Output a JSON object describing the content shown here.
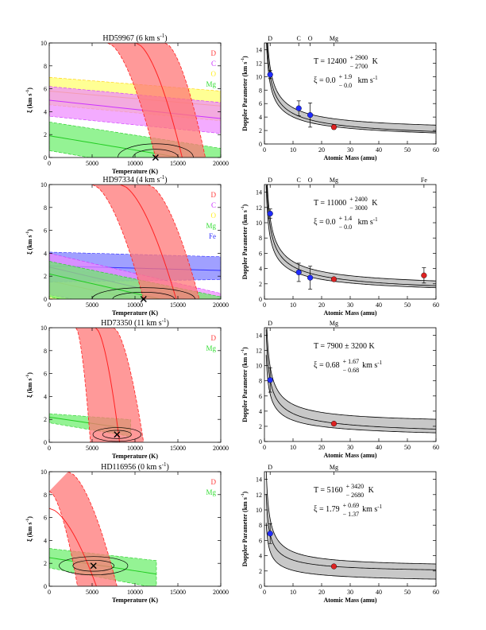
{
  "chart_data": [
    {
      "type": "contour",
      "title": "HD59967 (6 km s",
      "title_sup": "-1",
      "title_tail": ")",
      "xlabel": "Temperature (K)",
      "ylabel": "ξ (km s",
      "ylabel_sup": "-1",
      "ylabel_tail": ")",
      "xlim": [
        0,
        20000
      ],
      "ylim": [
        0,
        10
      ],
      "xticks": [
        "0",
        "5000",
        "10000",
        "15000",
        "20000"
      ],
      "yticks": [
        "0",
        "2",
        "4",
        "6",
        "8",
        "10"
      ],
      "legend": [
        {
          "label": "D",
          "color": "#ff3b3b"
        },
        {
          "label": "C",
          "color": "#cc33ff"
        },
        {
          "label": "O",
          "color": "#ffee22"
        },
        {
          "label": "Mg",
          "color": "#33dd33"
        }
      ],
      "best_fit": {
        "T": 12400,
        "xi": 0.0
      },
      "bands": [
        {
          "element": "O",
          "color": "#ffff66",
          "line": "#ffcc00",
          "y0": [
            4.6,
            3.2
          ],
          "y1": [
            7.0,
            5.8
          ],
          "ymid": [
            5.8,
            4.5
          ]
        },
        {
          "element": "C",
          "color": "#ee88ff",
          "line": "#cc33ff",
          "y0": [
            3.6,
            2.1
          ],
          "y1": [
            6.2,
            4.8
          ],
          "ymid": [
            5.0,
            3.4
          ]
        },
        {
          "element": "Mg",
          "color": "#66ee66",
          "line": "#22cc22",
          "y0": [
            0.6,
            -2.0
          ],
          "y1": [
            3.1,
            0.8
          ],
          "ymid": [
            1.9,
            -0.6
          ]
        },
        {
          "element": "D",
          "color": "#ff7777",
          "line": "#ff2222",
          "arcs": [
            [
              6800,
              10.0,
              12400,
              0.0
            ],
            [
              10100,
              10.0,
              15500,
              0.0
            ],
            [
              13500,
              10.0,
              18200,
              0.0
            ]
          ]
        }
      ]
    },
    {
      "type": "line",
      "xlabel": "Atomic Mass (amu)",
      "ylabel": "Doppler Parameter (km s",
      "ylabel_sup": "-1",
      "ylabel_tail": ")",
      "xlim": [
        0,
        60
      ],
      "ylim": [
        0,
        15
      ],
      "xticks": [
        "0",
        "10",
        "20",
        "30",
        "40",
        "50",
        "60"
      ],
      "yticks": [
        "0",
        "2",
        "4",
        "6",
        "8",
        "10",
        "12",
        "14"
      ],
      "top_labels": [
        {
          "label": "D",
          "mass": 2
        },
        {
          "label": "C",
          "mass": 12
        },
        {
          "label": "O",
          "mass": 16
        },
        {
          "label": "Mg",
          "mass": 24.3
        }
      ],
      "T_text": "T = 12400",
      "T_sup": "+ 2900",
      "T_sub": "− 2700",
      "T_unit": "K",
      "xi_text": "ξ = 0.0",
      "xi_sup": "+ 1.9",
      "xi_sub": "− 0.0",
      "xi_unit": "km s",
      "T": 12400,
      "T_lo": 9700,
      "T_hi": 15300,
      "xi": 0.0,
      "xi_lo": 0.0,
      "xi_hi": 1.9,
      "points": [
        {
          "element": "D",
          "mass": 2.0,
          "b": 10.3,
          "err": 0.6,
          "color": "#1f2bff"
        },
        {
          "element": "C",
          "mass": 12.0,
          "b": 5.3,
          "err": 1.1,
          "color": "#1f2bff"
        },
        {
          "element": "O",
          "mass": 16.0,
          "b": 4.3,
          "err": 1.8,
          "color": "#1f2bff"
        },
        {
          "element": "Mg",
          "mass": 24.3,
          "b": 2.5,
          "err": 0.3,
          "color": "#dd2222"
        }
      ]
    },
    {
      "type": "contour",
      "title": "HD97334 (4 km s",
      "title_sup": "-1",
      "title_tail": ")",
      "xlabel": "Temperature (K)",
      "ylabel": "ξ (km s",
      "ylabel_sup": "-1",
      "ylabel_tail": ")",
      "xlim": [
        0,
        20000
      ],
      "ylim": [
        0,
        10
      ],
      "xticks": [
        "0",
        "5000",
        "10000",
        "15000",
        "20000"
      ],
      "yticks": [
        "0",
        "2",
        "4",
        "6",
        "8",
        "10"
      ],
      "legend": [
        {
          "label": "D",
          "color": "#ff3b3b"
        },
        {
          "label": "C",
          "color": "#cc33ff"
        },
        {
          "label": "O",
          "color": "#ffee22"
        },
        {
          "label": "Mg",
          "color": "#33dd33"
        },
        {
          "label": "Fe",
          "color": "#3333ff"
        }
      ],
      "best_fit": {
        "T": 11000,
        "xi": 0.0
      },
      "bands": [
        {
          "element": "O",
          "color": "#ffff66",
          "line": "#ffcc00",
          "y0": [
            0.0,
            -4.0
          ],
          "y1": [
            3.0,
            0.0
          ],
          "ymid": [
            1.6,
            -1.6
          ]
        },
        {
          "element": "Fe",
          "color": "#7777ff",
          "line": "#3333ff",
          "y0": [
            1.5,
            1.7
          ],
          "y1": [
            4.1,
            3.7
          ],
          "ymid": [
            2.9,
            2.5
          ]
        },
        {
          "element": "C",
          "color": "#ee88ff",
          "line": "#cc33ff",
          "y0": [
            0.4,
            -2.6
          ],
          "y1": [
            4.0,
            0.5
          ],
          "ymid": [
            2.8,
            -0.7
          ]
        },
        {
          "element": "Mg",
          "color": "#66ee66",
          "line": "#22cc22",
          "y0": [
            0.2,
            -3.0
          ],
          "y1": [
            3.3,
            0.2
          ],
          "ymid": [
            2.2,
            -1.2
          ]
        },
        {
          "element": "D",
          "color": "#ff7777",
          "line": "#ff2222",
          "arcs": [
            [
              5000,
              10.0,
              11000,
              0.0
            ],
            [
              8300,
              10.0,
              14800,
              0.0
            ],
            [
              11500,
              10.0,
              17500,
              0.0
            ]
          ]
        }
      ]
    },
    {
      "type": "line",
      "xlabel": "Atomic Mass (amu)",
      "ylabel": "Doppler Parameter (km s",
      "ylabel_sup": "-1",
      "ylabel_tail": ")",
      "xlim": [
        0,
        60
      ],
      "ylim": [
        0,
        15
      ],
      "xticks": [
        "0",
        "10",
        "20",
        "30",
        "40",
        "50",
        "60"
      ],
      "yticks": [
        "0",
        "2",
        "4",
        "6",
        "8",
        "10",
        "12",
        "14"
      ],
      "top_labels": [
        {
          "label": "D",
          "mass": 2
        },
        {
          "label": "C",
          "mass": 12
        },
        {
          "label": "O",
          "mass": 16
        },
        {
          "label": "Mg",
          "mass": 24.3
        },
        {
          "label": "Fe",
          "mass": 55.8
        }
      ],
      "T_text": "T = 11000",
      "T_sup": "+ 2400",
      "T_sub": "− 3000",
      "T_unit": "K",
      "xi_text": "ξ = 0.0",
      "xi_sup": "+ 1.4",
      "xi_sub": "− 0.0",
      "xi_unit": "km s",
      "T": 11000,
      "T_lo": 8000,
      "T_hi": 13400,
      "xi": 0.0,
      "xi_lo": 0.0,
      "xi_hi": 1.4,
      "points": [
        {
          "element": "D",
          "mass": 2.0,
          "b": 11.2,
          "err": 0.6,
          "color": "#1f2bff"
        },
        {
          "element": "C",
          "mass": 12.0,
          "b": 3.5,
          "err": 1.2,
          "color": "#1f2bff"
        },
        {
          "element": "O",
          "mass": 16.0,
          "b": 2.8,
          "err": 1.5,
          "color": "#1f2bff"
        },
        {
          "element": "Mg",
          "mass": 24.3,
          "b": 2.6,
          "err": 0.2,
          "color": "#dd2222"
        },
        {
          "element": "Fe",
          "mass": 55.8,
          "b": 3.1,
          "err": 1.0,
          "color": "#dd2222"
        }
      ]
    },
    {
      "type": "contour",
      "title": "HD73350 (11 km s",
      "title_sup": "-1",
      "title_tail": ")",
      "xlabel": "Temperature (K)",
      "ylabel": "ξ (km s",
      "ylabel_sup": "-1",
      "ylabel_tail": ")",
      "xlim": [
        0,
        20000
      ],
      "ylim": [
        0,
        10
      ],
      "xticks": [
        "0",
        "5000",
        "10000",
        "15000",
        "20000"
      ],
      "yticks": [
        "0",
        "2",
        "4",
        "6",
        "8",
        "10"
      ],
      "legend": [
        {
          "label": "D",
          "color": "#ff3b3b"
        },
        {
          "label": "Mg",
          "color": "#33dd33"
        }
      ],
      "best_fit": {
        "T": 7900,
        "xi": 0.68
      },
      "bands": [
        {
          "element": "Mg",
          "color": "#66ee66",
          "line": "#22cc22",
          "y0": [
            1.7,
            -0.8
          ],
          "y1": [
            2.5,
            1.4
          ],
          "ymid": [
            2.2,
            0.0
          ],
          "xmax": 9500
        },
        {
          "element": "D",
          "color": "#ff7777",
          "line": "#ff2222",
          "arcs": [
            [
              3100,
              10.0,
              4800,
              0.0
            ],
            [
              5400,
              10.0,
              8200,
              0.0
            ],
            [
              7500,
              10.0,
              11000,
              0.0
            ]
          ]
        }
      ]
    },
    {
      "type": "line",
      "xlabel": "Atomic Mass (amu)",
      "ylabel": "Doppler Parameter (km s",
      "ylabel_sup": "-1",
      "ylabel_tail": ")",
      "xlim": [
        0,
        60
      ],
      "ylim": [
        0,
        15
      ],
      "xticks": [
        "0",
        "10",
        "20",
        "30",
        "40",
        "50",
        "60"
      ],
      "yticks": [
        "0",
        "2",
        "4",
        "6",
        "8",
        "10",
        "12",
        "14"
      ],
      "top_labels": [
        {
          "label": "D",
          "mass": 2
        },
        {
          "label": "Mg",
          "mass": 24.3
        }
      ],
      "T_text": "T = 7900 ± 3200 K",
      "T_sup": "",
      "T_sub": "",
      "T_unit": "",
      "xi_text": "ξ = 0.68",
      "xi_sup": "+ 1.67",
      "xi_sub": "− 0.68",
      "xi_unit": "km s",
      "T": 7900,
      "T_lo": 4700,
      "T_hi": 11100,
      "xi": 0.68,
      "xi_lo": 0.0,
      "xi_hi": 2.35,
      "points": [
        {
          "element": "D",
          "mass": 2.0,
          "b": 8.1,
          "err": 1.6,
          "color": "#1f2bff"
        },
        {
          "element": "Mg",
          "mass": 24.3,
          "b": 2.35,
          "err": 0.15,
          "color": "#dd2222"
        }
      ]
    },
    {
      "type": "contour",
      "title": "HD116956 (0 km s",
      "title_sup": "-1",
      "title_tail": ")",
      "xlabel": "Temperature (K)",
      "ylabel": "ξ (km s",
      "ylabel_sup": "-1",
      "ylabel_tail": ")",
      "xlim": [
        0,
        20000
      ],
      "ylim": [
        0,
        10
      ],
      "xticks": [
        "0",
        "5000",
        "10000",
        "15000",
        "20000"
      ],
      "yticks": [
        "0",
        "2",
        "4",
        "6",
        "8",
        "10"
      ],
      "legend": [
        {
          "label": "D",
          "color": "#ff3b3b"
        },
        {
          "label": "Mg",
          "color": "#33dd33"
        }
      ],
      "best_fit": {
        "T": 5160,
        "xi": 1.79
      },
      "bands": [
        {
          "element": "Mg",
          "color": "#66ee66",
          "line": "#22cc22",
          "y0": [
            1.6,
            -1.2
          ],
          "y1": [
            3.3,
            1.6
          ],
          "ymid": [
            2.5,
            0.2
          ],
          "xmax": 12500
        },
        {
          "element": "D",
          "color": "#ff7777",
          "line": "#ff2222",
          "arcs": [
            [
              0,
              8.3,
              3300,
              0.0
            ],
            [
              0,
              6.8,
              5500,
              0.0
            ],
            [
              2200,
              10.0,
              7900,
              0.0
            ]
          ]
        }
      ]
    },
    {
      "type": "line",
      "xlabel": "Atomic Mass (amu)",
      "ylabel": "Doppler Parameter (km s",
      "ylabel_sup": "-1",
      "ylabel_tail": ")",
      "xlim": [
        0,
        60
      ],
      "ylim": [
        0,
        15
      ],
      "xticks": [
        "0",
        "10",
        "20",
        "30",
        "40",
        "50",
        "60"
      ],
      "yticks": [
        "0",
        "2",
        "4",
        "6",
        "8",
        "10",
        "12",
        "14"
      ],
      "top_labels": [
        {
          "label": "D",
          "mass": 2
        },
        {
          "label": "Mg",
          "mass": 24.3
        }
      ],
      "T_text": "T = 5160",
      "T_sup": "+ 3420",
      "T_sub": "− 2680",
      "T_unit": "K",
      "xi_text": "ξ = 1.79",
      "xi_sup": "+ 0.69",
      "xi_sub": "− 1.37",
      "xi_unit": "km s",
      "T": 5160,
      "T_lo": 2480,
      "T_hi": 8580,
      "xi": 1.79,
      "xi_lo": 0.42,
      "xi_hi": 2.48,
      "points": [
        {
          "element": "D",
          "mass": 2.0,
          "b": 6.9,
          "err": 1.3,
          "color": "#1f2bff"
        },
        {
          "element": "Mg",
          "mass": 24.3,
          "b": 2.6,
          "err": 0.2,
          "color": "#dd2222"
        }
      ]
    }
  ]
}
